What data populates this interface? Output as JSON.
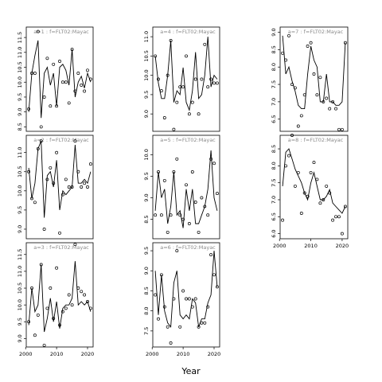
{
  "chart_data": {
    "type": "scatter",
    "xlabel": "Year",
    "panels": [
      {
        "title": "a=1 : f=FLT02:Mayac",
        "x": [
          2001,
          2002,
          2003,
          2004,
          2005,
          2006,
          2007,
          2008,
          2009,
          2010,
          2011,
          2012,
          2013,
          2014,
          2015,
          2016,
          2017,
          2018,
          2019,
          2020,
          2021
        ],
        "fitted": [
          9.0,
          10.3,
          10.9,
          11.4,
          8.8,
          10.3,
          10.5,
          9.9,
          10.3,
          9.2,
          10.5,
          10.6,
          10.4,
          9.9,
          11.1,
          9.5,
          10.0,
          10.2,
          9.8,
          10.3,
          10.0
        ],
        "observed": [
          9.1,
          10.3,
          10.3,
          11.7,
          8.5,
          9.5,
          10.8,
          9.2,
          10.6,
          9.2,
          10.7,
          10.0,
          10.0,
          9.3,
          11.1,
          9.7,
          10.3,
          9.9,
          9.7,
          10.4,
          10.1
        ],
        "yticks": [
          8.5,
          9.0,
          9.5,
          10.0,
          10.5,
          11.0,
          11.5
        ],
        "ylim": [
          8.35,
          11.85
        ]
      },
      {
        "title": "a=2 : f=FLT02:Mayac",
        "x": [
          2001,
          2002,
          2003,
          2004,
          2005,
          2006,
          2007,
          2008,
          2009,
          2010,
          2011,
          2012,
          2013,
          2014,
          2015,
          2016,
          2017,
          2018,
          2019,
          2020,
          2021
        ],
        "fitted": [
          10.6,
          9.8,
          10.2,
          11.1,
          11.3,
          9.3,
          10.4,
          10.5,
          10.1,
          10.8,
          9.5,
          10.0,
          9.9,
          10.0,
          10.1,
          11.2,
          10.2,
          10.2,
          10.3,
          10.2,
          10.5
        ],
        "observed": [
          10.5,
          9.8,
          9.7,
          11.1,
          11.3,
          9.0,
          10.3,
          10.6,
          10.2,
          11.0,
          8.9,
          9.9,
          10.3,
          10.1,
          10.1,
          11.3,
          10.5,
          10.1,
          10.2,
          10.1,
          10.7
        ],
        "yticks": [
          9.0,
          9.5,
          10.0,
          10.5,
          11.0
        ],
        "ylim": [
          8.75,
          11.45
        ]
      },
      {
        "title": "a=3 : f=FLT02:Mayac",
        "x": [
          2001,
          2002,
          2003,
          2004,
          2005,
          2006,
          2007,
          2008,
          2009,
          2010,
          2011,
          2012,
          2013,
          2014,
          2015,
          2016,
          2017,
          2018,
          2019,
          2020,
          2021
        ],
        "fitted": [
          9.4,
          10.5,
          9.8,
          10.0,
          11.2,
          9.2,
          9.6,
          10.2,
          9.5,
          10.1,
          9.3,
          9.9,
          10.0,
          10.0,
          10.2,
          11.3,
          10.0,
          10.1,
          10.0,
          10.1,
          9.8
        ],
        "observed": [
          9.5,
          10.5,
          9.1,
          9.7,
          11.2,
          8.8,
          9.9,
          10.5,
          9.6,
          11.1,
          9.4,
          9.8,
          9.9,
          10.3,
          10.0,
          11.8,
          10.5,
          10.4,
          10.3,
          10.1,
          9.9
        ],
        "yticks": [
          9.0,
          9.5,
          10.0,
          10.5,
          11.0,
          11.5
        ],
        "ylim": [
          8.75,
          11.85
        ]
      },
      {
        "title": "a=4 : f=FLT02:Mayac",
        "x": [
          2001,
          2002,
          2003,
          2004,
          2005,
          2006,
          2007,
          2008,
          2009,
          2010,
          2011,
          2012,
          2013,
          2014,
          2015,
          2016,
          2017,
          2018,
          2019,
          2020,
          2021
        ],
        "fitted": [
          10.5,
          9.8,
          9.4,
          9.4,
          10.0,
          10.9,
          9.3,
          9.6,
          9.5,
          10.2,
          9.3,
          9.1,
          9.6,
          10.6,
          9.4,
          9.5,
          10.0,
          11.0,
          9.7,
          10.0,
          9.9
        ],
        "observed": [
          10.5,
          9.9,
          9.6,
          8.9,
          10.0,
          10.9,
          8.6,
          9.3,
          9.7,
          9.7,
          10.5,
          9.0,
          9.3,
          9.9,
          9.0,
          9.9,
          10.8,
          9.7,
          9.9,
          9.8,
          9.8
        ],
        "yticks": [
          9.0,
          9.5,
          10.0,
          10.5,
          11.0
        ],
        "ylim": [
          8.55,
          11.25
        ]
      },
      {
        "title": "a=5 : f=FLT02:Mayac",
        "x": [
          2001,
          2002,
          2003,
          2004,
          2005,
          2006,
          2007,
          2008,
          2009,
          2010,
          2011,
          2012,
          2013,
          2014,
          2015,
          2016,
          2017,
          2018,
          2019,
          2020,
          2021
        ],
        "fitted": [
          8.7,
          9.6,
          9.0,
          9.2,
          8.4,
          8.8,
          9.6,
          8.6,
          8.7,
          8.3,
          9.2,
          8.7,
          9.2,
          8.4,
          8.4,
          8.6,
          8.8,
          9.2,
          10.1,
          9.0,
          8.7
        ],
        "observed": [
          8.6,
          9.6,
          8.6,
          9.4,
          8.2,
          8.6,
          9.6,
          9.9,
          8.6,
          8.5,
          9.3,
          8.4,
          9.6,
          8.9,
          8.2,
          9.0,
          8.8,
          8.6,
          9.9,
          9.8,
          9.1
        ],
        "yticks": [
          8.5,
          9.0,
          9.5,
          10.0
        ],
        "ylim": [
          8.05,
          10.45
        ]
      },
      {
        "title": "a=6 : f=FLT02:Mayac",
        "x": [
          2001,
          2002,
          2003,
          2004,
          2005,
          2006,
          2007,
          2008,
          2009,
          2010,
          2011,
          2012,
          2013,
          2014,
          2015,
          2016,
          2017,
          2018,
          2019,
          2020,
          2021
        ],
        "fitted": [
          9.0,
          7.9,
          8.9,
          8.0,
          7.7,
          7.6,
          8.7,
          9.0,
          7.9,
          7.8,
          7.9,
          7.8,
          8.3,
          8.2,
          7.6,
          7.8,
          7.8,
          8.2,
          8.4,
          9.5,
          8.6
        ],
        "observed": [
          8.4,
          7.8,
          8.9,
          8.1,
          7.6,
          7.2,
          8.3,
          9.5,
          7.6,
          8.5,
          8.3,
          8.3,
          8.1,
          8.3,
          7.6,
          7.7,
          7.7,
          8.1,
          9.4,
          8.9,
          8.6
        ],
        "yticks": [
          7.5,
          8.0,
          8.5,
          9.0,
          9.5
        ],
        "ylim": [
          7.1,
          9.7
        ]
      },
      {
        "title": "a=7 : f=FLT02:Mayac",
        "x": [
          2001,
          2002,
          2003,
          2004,
          2005,
          2006,
          2007,
          2008,
          2009,
          2010,
          2011,
          2012,
          2013,
          2014,
          2015,
          2016,
          2017,
          2018,
          2019,
          2020,
          2021
        ],
        "fitted": [
          8.9,
          7.8,
          8.0,
          7.6,
          7.3,
          6.9,
          6.8,
          6.8,
          7.8,
          8.6,
          8.2,
          8.0,
          7.0,
          7.0,
          7.8,
          7.0,
          7.0,
          6.9,
          6.9,
          7.0,
          8.7
        ],
        "observed": [
          8.4,
          8.2,
          8.9,
          7.5,
          7.4,
          6.3,
          6.6,
          7.2,
          8.6,
          8.7,
          7.8,
          7.2,
          7.7,
          7.0,
          7.1,
          6.8,
          7.0,
          6.8,
          6.2,
          6.2,
          8.7
        ],
        "yticks": [
          6.5,
          7.0,
          7.5,
          8.0,
          8.5,
          9.0
        ],
        "ylim": [
          6.15,
          9.15
        ]
      },
      {
        "title": "a=8 : f=FLT02:Mayac",
        "x": [
          2001,
          2002,
          2003,
          2004,
          2005,
          2006,
          2007,
          2008,
          2009,
          2010,
          2011,
          2012,
          2013,
          2014,
          2015,
          2016,
          2017,
          2018,
          2019,
          2020,
          2021
        ],
        "fitted": [
          7.4,
          8.4,
          8.5,
          8.2,
          7.9,
          7.7,
          7.5,
          7.2,
          7.0,
          7.5,
          7.8,
          7.4,
          7.0,
          7.0,
          7.1,
          7.3,
          6.9,
          6.8,
          6.7,
          6.6,
          6.8
        ],
        "observed": [
          6.4,
          8.0,
          8.3,
          8.9,
          7.4,
          7.8,
          6.6,
          7.2,
          7.1,
          7.8,
          8.1,
          7.6,
          6.9,
          7.0,
          7.4,
          7.2,
          6.4,
          6.5,
          6.5,
          6.0,
          6.8
        ],
        "yticks": [
          6.0,
          6.5,
          7.0,
          7.5,
          8.0,
          8.5
        ],
        "ylim": [
          5.85,
          8.9
        ]
      }
    ],
    "xticks": [
      2000,
      2010,
      2020
    ],
    "xlim": [
      2000.2,
      2021.8
    ]
  }
}
